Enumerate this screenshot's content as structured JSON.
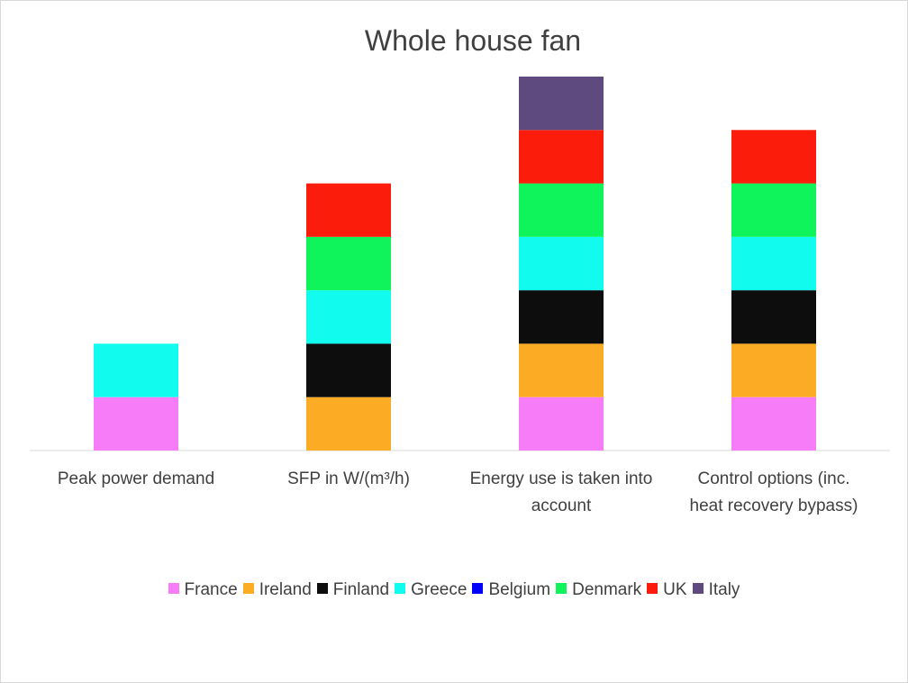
{
  "chart_data": {
    "type": "bar",
    "stacked": true,
    "title": "Whole house fan",
    "categories": [
      "Peak power demand",
      "SFP in W/(m³/h)",
      "Energy use is taken into account",
      "Control options (inc. heat recovery bypass)"
    ],
    "category_lines": [
      [
        "Peak power demand"
      ],
      [
        "SFP in W/(m³/h)"
      ],
      [
        "Energy use is taken into",
        "account"
      ],
      [
        "Control options (inc.",
        "heat recovery bypass)"
      ]
    ],
    "series": [
      {
        "name": "France",
        "color": "#F77CF7",
        "values": [
          1,
          0,
          1,
          1
        ]
      },
      {
        "name": "Ireland",
        "color": "#FCAC24",
        "values": [
          0,
          1,
          1,
          1
        ]
      },
      {
        "name": "Finland",
        "color": "#0D0D0D",
        "values": [
          0,
          1,
          1,
          1
        ]
      },
      {
        "name": "Greece",
        "color": "#11FCEE",
        "values": [
          1,
          1,
          1,
          1
        ]
      },
      {
        "name": "Belgium",
        "color": "#0000FF",
        "values": [
          0,
          0,
          0,
          0
        ]
      },
      {
        "name": "Denmark",
        "color": "#0FF45A",
        "values": [
          0,
          1,
          1,
          1
        ]
      },
      {
        "name": "UK",
        "color": "#FC1C0C",
        "values": [
          0,
          1,
          1,
          1
        ]
      },
      {
        "name": "Italy",
        "color": "#5E4A7E",
        "values": [
          0,
          0,
          1,
          0
        ]
      }
    ],
    "ylim": [
      0,
      7
    ],
    "legend_position": "bottom",
    "grid": false
  }
}
